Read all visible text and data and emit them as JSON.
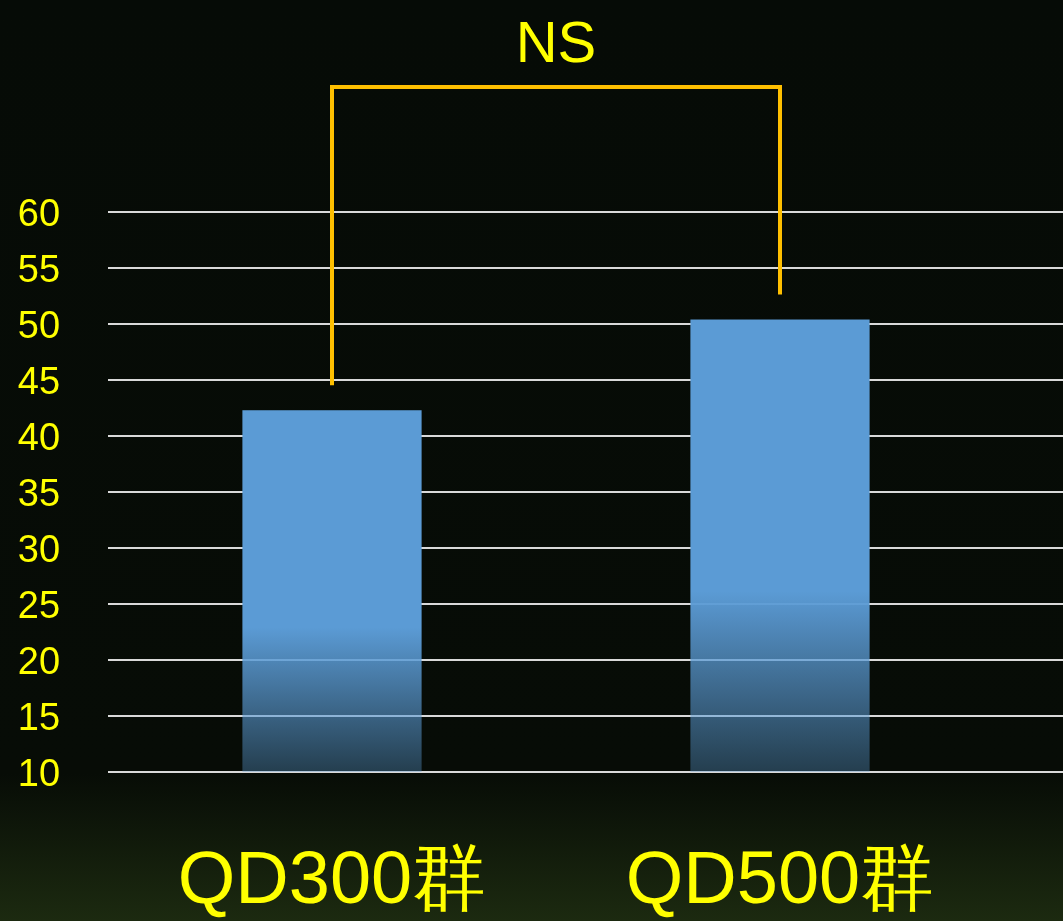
{
  "chart_data": {
    "type": "bar",
    "categories": [
      "QD300群",
      "QD500群"
    ],
    "values": [
      42.3,
      50.4
    ],
    "color": "#5b9bd5",
    "ylim": [
      10,
      60
    ],
    "yticks": [
      10,
      15,
      20,
      25,
      30,
      35,
      40,
      45,
      50,
      55,
      60
    ],
    "grid": "y",
    "annotations": [
      "NS"
    ]
  }
}
